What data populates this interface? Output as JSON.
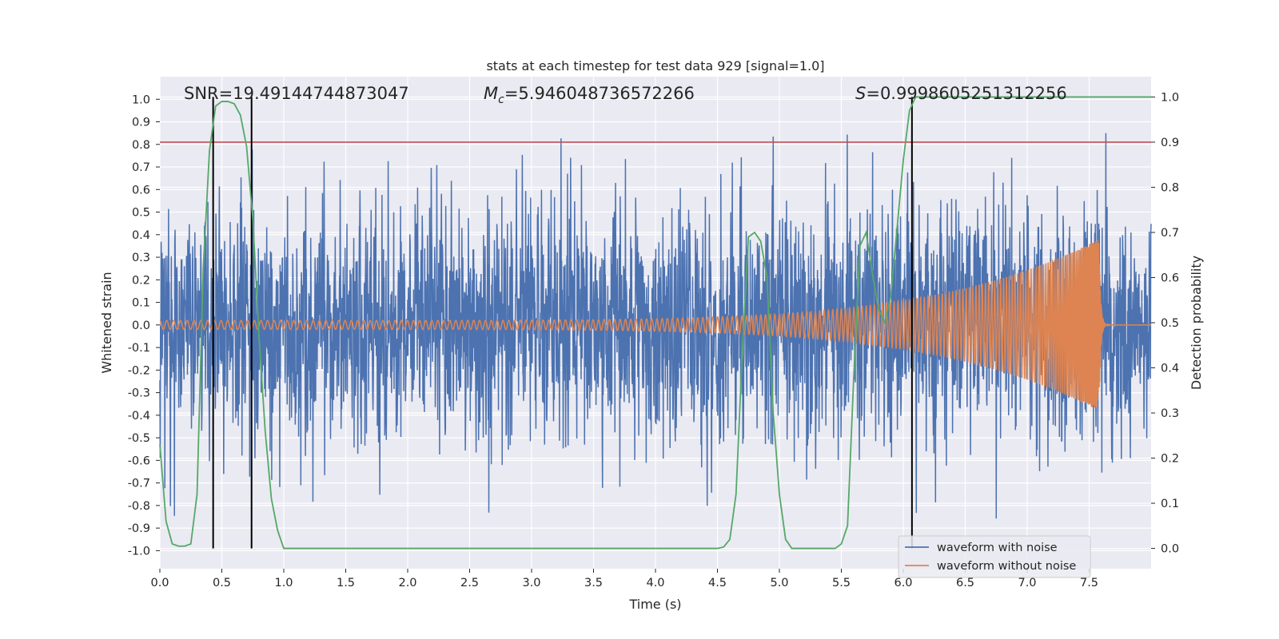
{
  "chart_data": {
    "type": "line",
    "title": "stats at each timestep for test data 929 [signal=1.0]",
    "xlabel": "Time (s)",
    "ylabel_left": "Whitened strain",
    "ylabel_right": "Detection probability",
    "xlim": [
      0.0,
      8.0
    ],
    "ylim_left": [
      -1.08,
      1.1
    ],
    "ylim_right": [
      -0.045,
      1.045
    ],
    "xticks": [
      0.0,
      0.5,
      1.0,
      1.5,
      2.0,
      2.5,
      3.0,
      3.5,
      4.0,
      4.5,
      5.0,
      5.5,
      6.0,
      6.5,
      7.0,
      7.5
    ],
    "xtick_labels": [
      "0.0",
      "0.5",
      "1.0",
      "1.5",
      "2.0",
      "2.5",
      "3.0",
      "3.5",
      "4.0",
      "4.5",
      "5.0",
      "5.5",
      "6.0",
      "6.5",
      "7.0",
      "7.5"
    ],
    "yticks_left": [
      1.0,
      0.9,
      0.8,
      0.7,
      0.6,
      0.5,
      0.4,
      0.3,
      0.2,
      0.1,
      0.0,
      -0.1,
      -0.2,
      -0.3,
      -0.4,
      -0.5,
      -0.6,
      -0.7,
      -0.8,
      -0.9,
      -1.0
    ],
    "ytick_labels_left": [
      "1.0",
      "0.9",
      "0.8",
      "0.7",
      "0.6",
      "0.5",
      "0.4",
      "0.3",
      "0.2",
      "0.1",
      "0.0",
      "-0.1",
      "-0.2",
      "-0.3",
      "-0.4",
      "-0.5",
      "-0.6",
      "-0.7",
      "-0.8",
      "-0.9",
      "-1.0"
    ],
    "yticks_right": [
      1.0,
      0.9,
      0.8,
      0.7,
      0.6,
      0.5,
      0.4,
      0.3,
      0.2,
      0.1,
      0.0
    ],
    "ytick_labels_right": [
      "1.0",
      "0.9",
      "0.8",
      "0.7",
      "0.6",
      "0.5",
      "0.4",
      "0.3",
      "0.2",
      "0.1",
      "0.0"
    ],
    "annotations": {
      "snr": "SNR=19.49144744873047",
      "mc_symbol": "M",
      "mc_sub": "c",
      "mc_value": "=5.946048736572266",
      "s_symbol": "S",
      "s_value": "=0.9998605251312256"
    },
    "threshold_line": {
      "value": 0.9,
      "axis": "right",
      "color": "#c44e52"
    },
    "vertical_lines": [
      0.43,
      0.74,
      6.07
    ],
    "noisy_waveform": {
      "name": "waveform with noise",
      "color": "#4c72b0",
      "amplitude": 0.25,
      "spike_max": 0.85,
      "min": -0.97,
      "max": 0.85
    },
    "clean_waveform": {
      "name": "waveform without noise",
      "color": "#dd8452",
      "start_amplitude": 0.02,
      "merger_time": 7.58,
      "peak_amplitude": 0.38,
      "start_frequency": 18
    },
    "detection_probability": {
      "name": "detection probability",
      "color": "#55a868",
      "x": [
        0.0,
        0.05,
        0.1,
        0.15,
        0.2,
        0.25,
        0.3,
        0.35,
        0.4,
        0.45,
        0.5,
        0.55,
        0.6,
        0.65,
        0.7,
        0.75,
        0.8,
        0.85,
        0.9,
        0.95,
        1.0,
        1.05,
        1.1,
        1.15,
        1.5,
        2.0,
        3.0,
        4.0,
        4.4,
        4.5,
        4.55,
        4.6,
        4.65,
        4.7,
        4.75,
        4.8,
        4.85,
        4.9,
        4.95,
        5.0,
        5.05,
        5.1,
        5.15,
        5.2,
        5.3,
        5.45,
        5.5,
        5.55,
        5.6,
        5.65,
        5.7,
        5.75,
        5.8,
        5.85,
        5.9,
        5.95,
        6.0,
        6.05,
        6.1,
        6.15,
        6.2,
        6.5,
        7.0,
        7.5,
        8.0
      ],
      "y": [
        0.23,
        0.06,
        0.01,
        0.005,
        0.005,
        0.01,
        0.12,
        0.62,
        0.88,
        0.98,
        0.99,
        0.99,
        0.985,
        0.96,
        0.89,
        0.73,
        0.47,
        0.26,
        0.11,
        0.04,
        0.0,
        0.0,
        0.0,
        0.0,
        0.0,
        0.0,
        0.0,
        0.0,
        0.0,
        0.0,
        0.003,
        0.02,
        0.12,
        0.43,
        0.69,
        0.7,
        0.68,
        0.6,
        0.3,
        0.12,
        0.02,
        0.0,
        0.0,
        0.0,
        0.0,
        0.0,
        0.01,
        0.05,
        0.38,
        0.67,
        0.7,
        0.61,
        0.53,
        0.5,
        0.56,
        0.71,
        0.86,
        0.97,
        1.0,
        1.0,
        1.0,
        1.0,
        1.0,
        1.0,
        1.0
      ]
    },
    "legend": {
      "placement": "lower-right",
      "entries": [
        "waveform with noise",
        "waveform without noise"
      ]
    },
    "grid": true
  }
}
